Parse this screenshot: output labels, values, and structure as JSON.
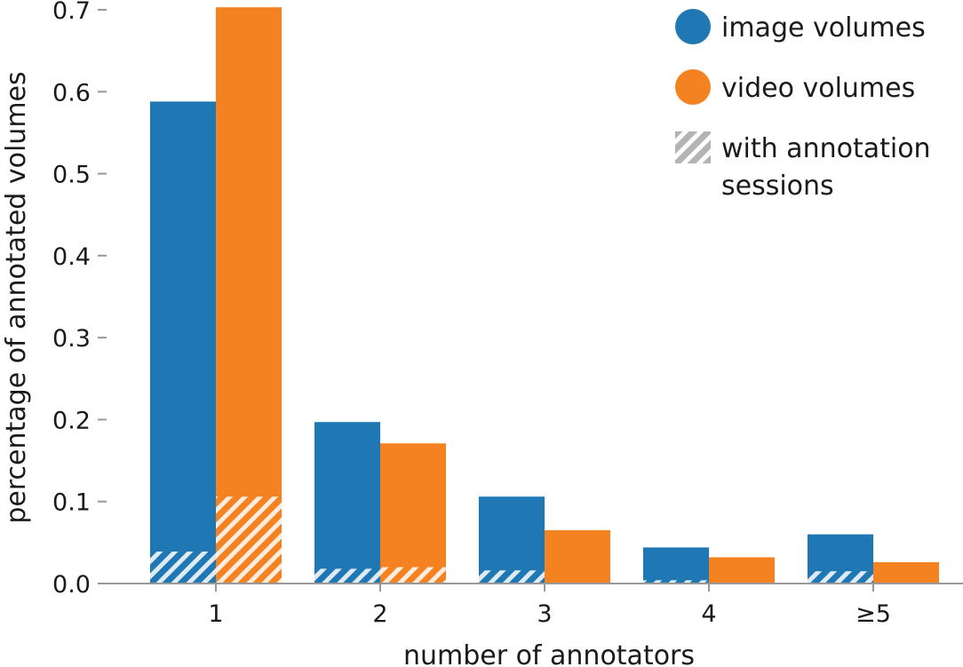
{
  "chart_data": {
    "type": "bar",
    "xlabel": "number of annotators",
    "ylabel": "percentage of annotated volumes",
    "categories": [
      "1",
      "2",
      "3",
      "4",
      "≥5"
    ],
    "ylim": [
      0,
      0.7
    ],
    "yticks": [
      "0.0",
      "0.1",
      "0.2",
      "0.3",
      "0.4",
      "0.5",
      "0.6",
      "0.7"
    ],
    "grid": false,
    "legend_position": "top-right",
    "series": [
      {
        "name": "image volumes",
        "color": "#1f77b4",
        "values": [
          0.588,
          0.197,
          0.106,
          0.044,
          0.06
        ],
        "with_sessions": [
          0.039,
          0.018,
          0.016,
          0.004,
          0.015
        ]
      },
      {
        "name": "video volumes",
        "color": "#f58220",
        "values": [
          0.703,
          0.171,
          0.065,
          0.032,
          0.026
        ],
        "with_sessions": [
          0.106,
          0.02,
          0.0,
          0.0,
          0.0
        ]
      }
    ],
    "legend": [
      {
        "label": "image volumes",
        "marker": "circle",
        "color": "#1f77b4"
      },
      {
        "label": "video volumes",
        "marker": "circle",
        "color": "#f58220"
      },
      {
        "label": "with annotation sessions",
        "marker": "hatch",
        "color": "#b3b3b3"
      }
    ],
    "hatch_legend_lines": [
      "with annotation",
      "sessions"
    ]
  }
}
